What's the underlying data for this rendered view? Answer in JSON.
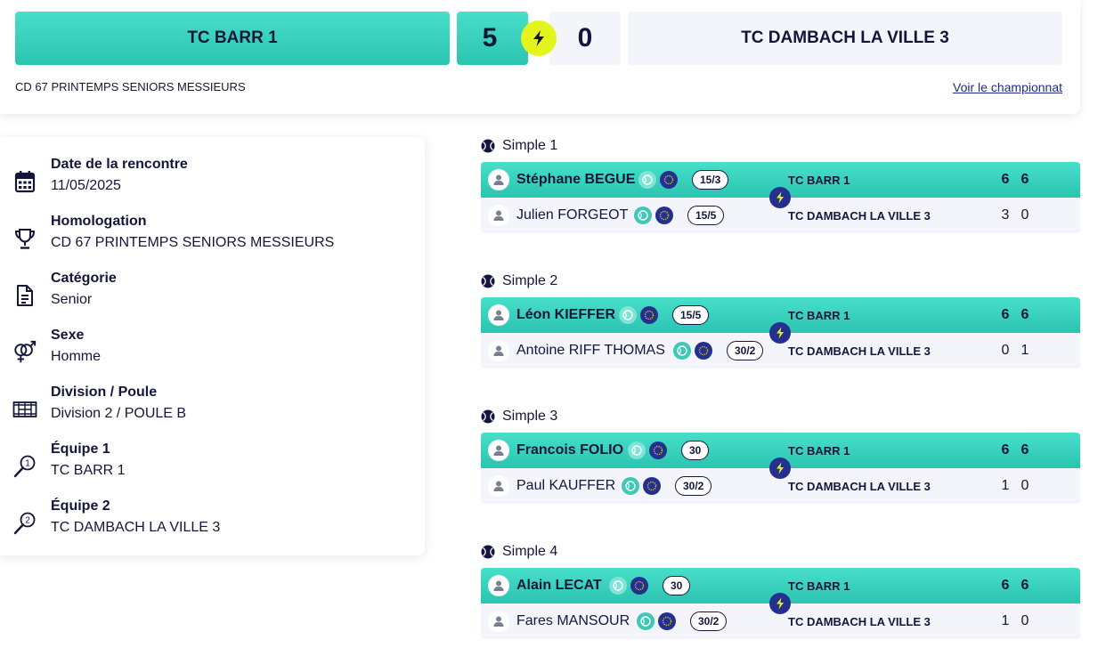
{
  "header": {
    "home_team": "TC BARR 1",
    "home_score": "5",
    "away_score": "0",
    "away_team": "TC DAMBACH LA VILLE 3",
    "championship": "CD 67 PRINTEMPS SENIORS MESSIEURS",
    "championship_link": "Voir le championnat",
    "winner_badge_color": "#e4f51e",
    "accent_color": "#2bc4b0"
  },
  "info": {
    "date": {
      "label": "Date de la rencontre",
      "value": "11/05/2025",
      "icon": "calendar-icon"
    },
    "homologation": {
      "label": "Homologation",
      "value": "CD 67 PRINTEMPS SENIORS MESSIEURS",
      "icon": "trophy-icon"
    },
    "category": {
      "label": "Catégorie",
      "value": "Senior",
      "icon": "document-icon"
    },
    "sex": {
      "label": "Sexe",
      "value": "Homme",
      "icon": "gender-icon"
    },
    "division": {
      "label": "Division / Poule",
      "value": "Division 2 / POULE B",
      "icon": "court-icon"
    },
    "team1": {
      "label": "Équipe 1",
      "value": "TC BARR 1",
      "icon": "racket-1-icon"
    },
    "team2": {
      "label": "Équipe 2",
      "value": "TC DAMBACH LA VILLE 3",
      "icon": "racket-2-icon"
    }
  },
  "matches": [
    {
      "title": "Simple 1",
      "winner": {
        "name": "Stéphane BEGUE",
        "rank": "15/3",
        "club": "TC BARR 1",
        "sets": [
          "6",
          "6"
        ]
      },
      "loser": {
        "name": "Julien FORGEOT",
        "rank": "15/5",
        "club": "TC DAMBACH LA VILLE 3",
        "sets": [
          "3",
          "0"
        ]
      }
    },
    {
      "title": "Simple 2",
      "winner": {
        "name": "Léon KIEFFER",
        "rank": "15/5",
        "club": "TC BARR 1",
        "sets": [
          "6",
          "6"
        ]
      },
      "loser": {
        "name": "Antoine RIFF THOMAS",
        "rank": "30/2",
        "club": "TC DAMBACH LA VILLE 3",
        "sets": [
          "0",
          "1"
        ]
      }
    },
    {
      "title": "Simple 3",
      "winner": {
        "name": "Francois FOLIO",
        "rank": "30",
        "club": "TC BARR 1",
        "sets": [
          "6",
          "6"
        ]
      },
      "loser": {
        "name": "Paul KAUFFER",
        "rank": "30/2",
        "club": "TC DAMBACH LA VILLE 3",
        "sets": [
          "1",
          "0"
        ]
      }
    },
    {
      "title": "Simple 4",
      "winner": {
        "name": "Alain LECAT",
        "rank": "30",
        "club": "TC BARR 1",
        "sets": [
          "6",
          "6"
        ]
      },
      "loser": {
        "name": "Fares MANSOUR",
        "rank": "30/2",
        "club": "TC DAMBACH LA VILLE 3",
        "sets": [
          "1",
          "0"
        ]
      }
    }
  ]
}
